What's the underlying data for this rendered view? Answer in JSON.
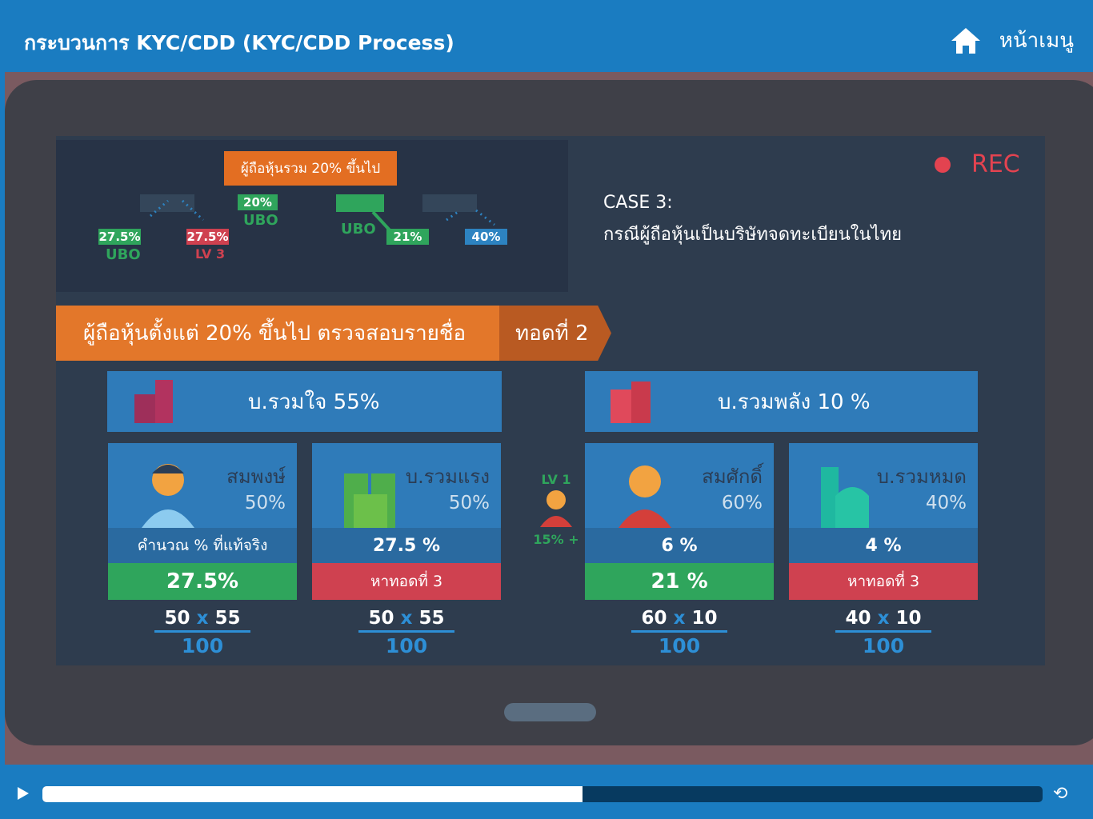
{
  "header": {
    "title": "กระบวนการ KYC/CDD (KYC/CDD Process)",
    "home_label": "หน้าเมนู",
    "home_icon": "home-icon"
  },
  "diagram": {
    "headline": "ผู้ถือหุ้นรวม 20% ขึ้นไป",
    "tags": [
      {
        "value": "27.5%",
        "label": "UBO",
        "color": "#2fa55c"
      },
      {
        "value": "27.5%",
        "label": "LV 3",
        "color": "#cf4150"
      },
      {
        "value": "20%",
        "label": "UBO",
        "color": "#2fa55c"
      },
      {
        "value": "21%",
        "label": "UBO",
        "color": "#2fa55c"
      },
      {
        "value": "40%",
        "label": "",
        "color": "#2d83c1"
      }
    ]
  },
  "rec": "REC",
  "case": {
    "title": "CASE 3:",
    "subtitle": "กรณีผู้ถือหุ้นเป็นบริษัทจดทะเบียนในไทย"
  },
  "banner": {
    "text": "ผู้ถือหุ้นตั้งแต่ 20% ขึ้นไป ตรวจสอบรายชื่อ",
    "step": "ทอดที่ 2"
  },
  "companies": [
    {
      "name": "บ.รวมใจ 55%"
    },
    {
      "name": "บ.รวมพลัง 10 %"
    }
  ],
  "lv1": {
    "label": "LV 1",
    "value": "15% +"
  },
  "cards": [
    {
      "name": "สมพงษ์",
      "pct": "50%",
      "mid": "คำนวณ % ที่แท้จริง",
      "bottom": "27.5%",
      "bottom_color": "#2fa55c",
      "a": "50",
      "b": "55",
      "d": "100"
    },
    {
      "name": "บ.รวมแรง",
      "pct": "50%",
      "mid": "27.5 %",
      "bottom": "หาทอดที่ 3",
      "bottom_color": "#cf4150",
      "a": "50",
      "b": "55",
      "d": "100"
    },
    {
      "name": "สมศักดิ์",
      "pct": "60%",
      "mid": "6 %",
      "bottom": "21 %",
      "bottom_color": "#2fa55c",
      "a": "60",
      "b": "10",
      "d": "100"
    },
    {
      "name": "บ.รวมหมด",
      "pct": "40%",
      "mid": "4 %",
      "bottom": "หาทอดที่ 3",
      "bottom_color": "#cf4150",
      "a": "40",
      "b": "10",
      "d": "100"
    }
  ],
  "times_sign": "x",
  "player": {
    "progress_percent": 54
  }
}
